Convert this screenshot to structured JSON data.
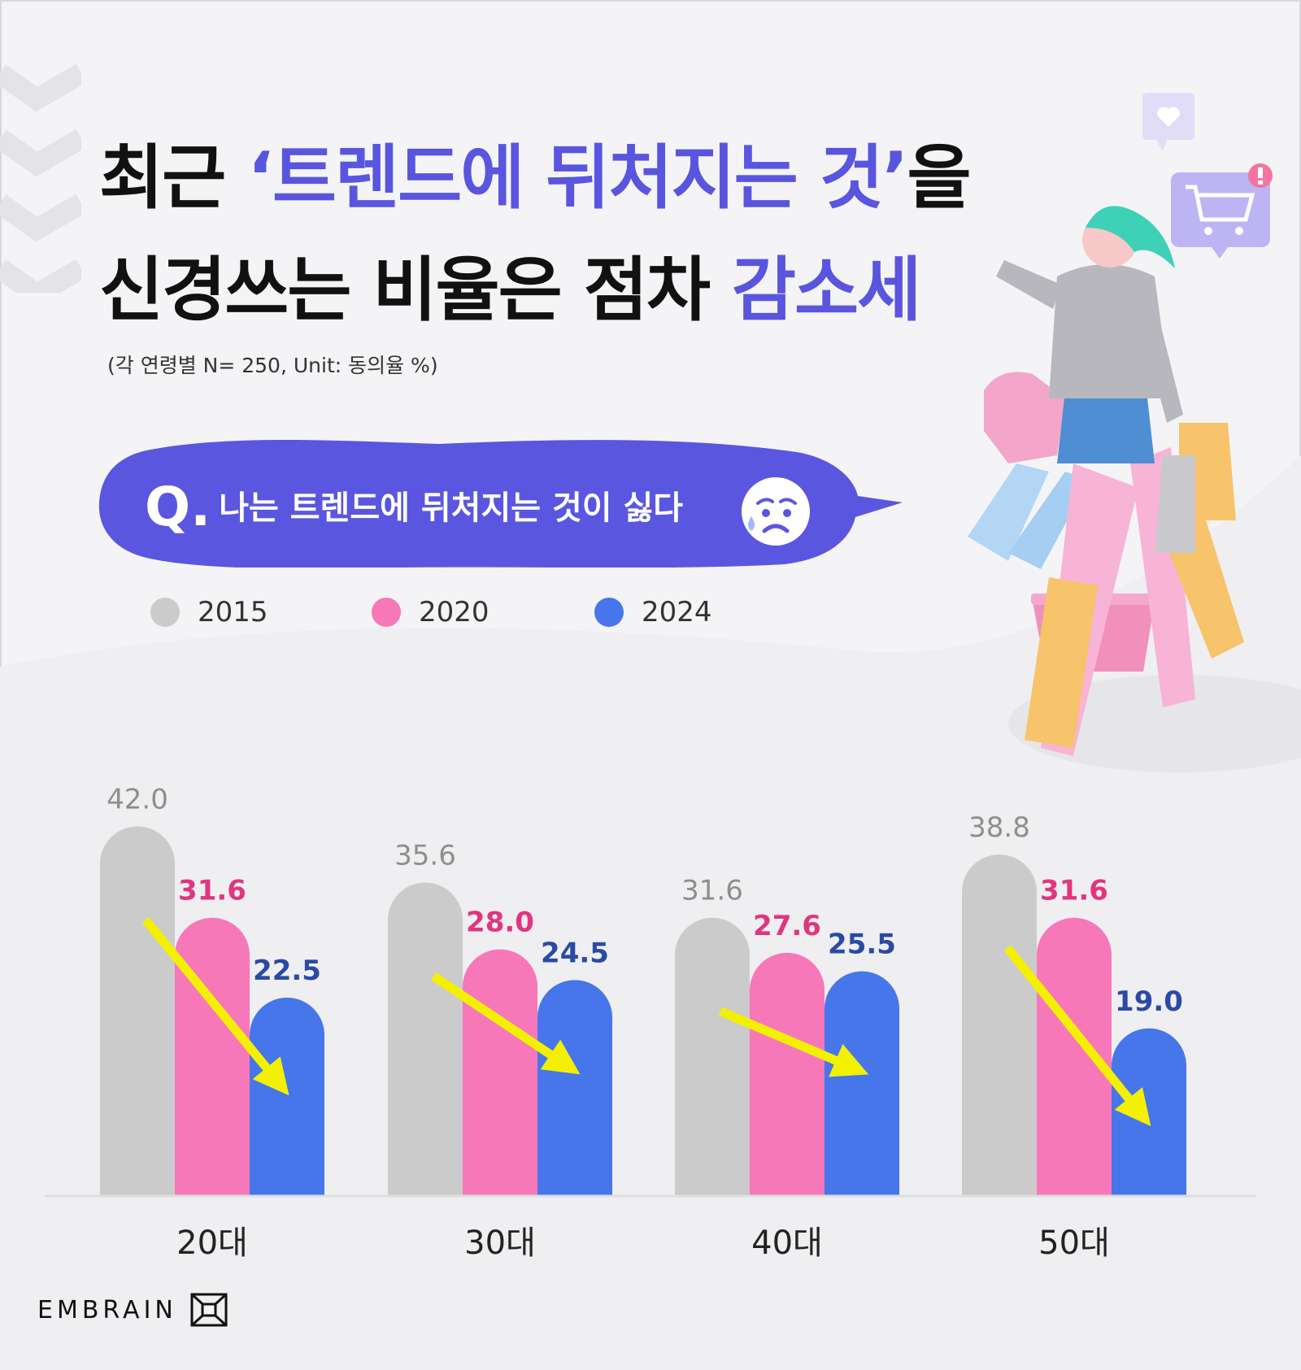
{
  "title": {
    "line1_prefix": "최근 ",
    "line1_accent": "‘트렌드에 뒤처지는 것’",
    "line1_suffix": "을",
    "line2_prefix": "신경쓰는 비율은 점차 ",
    "line2_accent": "감소세"
  },
  "subtitle": "(각 연령별 N= 250, Unit: 동의율 %)",
  "question": {
    "mark": "Q.",
    "text": "나는 트렌드에 뒤처지는 것이 싫다"
  },
  "brand": "EMBRAIN",
  "colors": {
    "accent": "#5a55de",
    "bubble": "#5b56df",
    "s2015": "#cbcbcb",
    "s2020": "#f778b8",
    "s2024": "#4676ea",
    "arrow": "#f3f000",
    "label2015": "#8e8e8e",
    "label2020": "#e2357f",
    "label2024": "#2b4aa6"
  },
  "icons": [
    "heart-icon",
    "shopping-cart-icon",
    "alert-icon",
    "worried-face-icon",
    "brand-logo-icon"
  ],
  "chart_data": {
    "type": "bar",
    "categories": [
      "20대",
      "30대",
      "40대",
      "50대"
    ],
    "series": [
      {
        "name": "2015",
        "values": [
          42.0,
          35.6,
          31.6,
          38.8
        ]
      },
      {
        "name": "2020",
        "values": [
          31.6,
          28.0,
          27.6,
          31.6
        ]
      },
      {
        "name": "2024",
        "values": [
          22.5,
          24.5,
          25.5,
          19.0
        ]
      }
    ],
    "legend_position": "top-left",
    "grid": false,
    "value_labels": true,
    "trend_arrows": true,
    "ylim": [
      0,
      45
    ]
  }
}
